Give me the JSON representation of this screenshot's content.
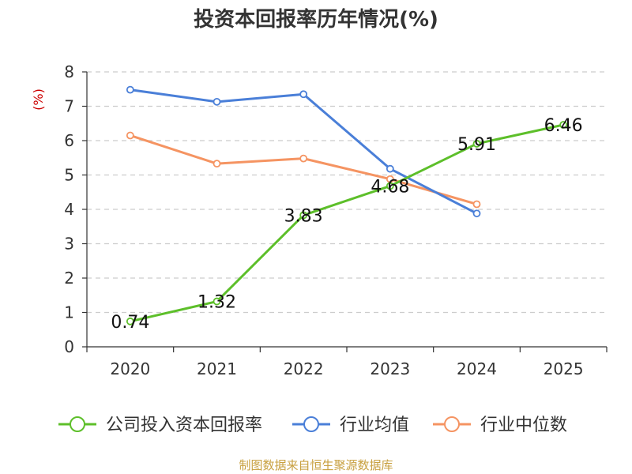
{
  "chart_data": {
    "type": "line",
    "title": "投资本回报率历年情况(%)",
    "ylabel": "(%)",
    "xlabel": "",
    "categories": [
      "2020",
      "2021",
      "2022",
      "2023",
      "2024",
      "2025"
    ],
    "ylim": [
      0,
      8
    ],
    "yticks": [
      0,
      1,
      2,
      3,
      4,
      5,
      6,
      7,
      8
    ],
    "grid": true,
    "legend_position": "bottom",
    "series": [
      {
        "name": "公司投入资本回报率",
        "color": "#5dbf2a",
        "values": [
          0.74,
          1.32,
          3.83,
          4.68,
          5.91,
          6.46
        ],
        "labels": [
          "0.74",
          "1.32",
          "3.83",
          "4.68",
          "5.91",
          "6.46"
        ]
      },
      {
        "name": "行业均值",
        "color": "#4a7fd8",
        "values": [
          7.48,
          7.13,
          7.35,
          5.18,
          3.88,
          null
        ]
      },
      {
        "name": "行业中位数",
        "color": "#f59462",
        "values": [
          6.15,
          5.33,
          5.48,
          4.88,
          4.15,
          null
        ]
      }
    ]
  },
  "source": "制图数据来自恒生聚源数据库"
}
